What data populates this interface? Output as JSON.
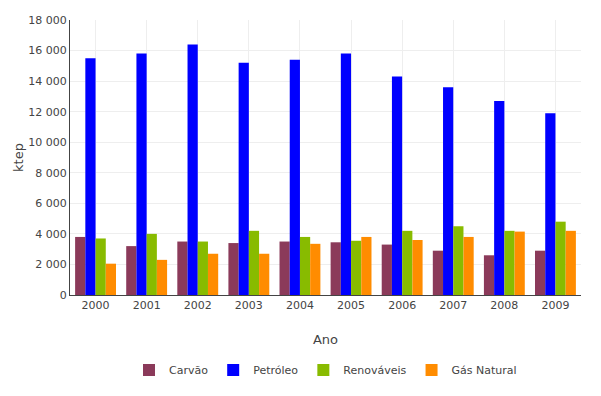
{
  "chart_data": {
    "type": "bar",
    "xlabel": "Ano",
    "ylabel": "ktep",
    "categories": [
      "2000",
      "2001",
      "2002",
      "2003",
      "2004",
      "2005",
      "2006",
      "2007",
      "2008",
      "2009"
    ],
    "series": [
      {
        "name": "Carvão",
        "color": "#8B3A5A",
        "values": [
          3800,
          3200,
          3500,
          3400,
          3500,
          3450,
          3300,
          2900,
          2600,
          2900
        ]
      },
      {
        "name": "Petróleo",
        "color": "#0000FF",
        "values": [
          15500,
          15800,
          16400,
          15200,
          15400,
          15800,
          14300,
          13600,
          12700,
          11900
        ]
      },
      {
        "name": "Renováveis",
        "color": "#88BB00",
        "values": [
          3700,
          4000,
          3500,
          4200,
          3800,
          3550,
          4200,
          4500,
          4200,
          4800
        ]
      },
      {
        "name": "Gás Natural",
        "color": "#FF8C00",
        "values": [
          2050,
          2300,
          2700,
          2700,
          3350,
          3800,
          3600,
          3800,
          4150,
          4200
        ]
      }
    ],
    "ylim": [
      0,
      18000
    ],
    "yticks": [
      0,
      {
        "value": 2000,
        "label": "2 000"
      },
      {
        "value": 4000,
        "label": "4 000"
      },
      {
        "value": 6000,
        "label": "6 000"
      },
      {
        "value": 8000,
        "label": "8 000"
      },
      {
        "value": 10000,
        "label": "10 000"
      },
      {
        "value": 12000,
        "label": "12 000"
      },
      {
        "value": 14000,
        "label": "14 000"
      },
      {
        "value": 16000,
        "label": "16 000"
      },
      {
        "value": 18000,
        "label": "18 000"
      }
    ],
    "grid": true,
    "legend": "bottom"
  }
}
